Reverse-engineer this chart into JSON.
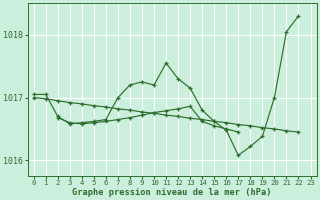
{
  "xlabel": "Graphe pression niveau de la mer (hPa)",
  "bg_color": "#cceedd",
  "grid_color": "#ffffff",
  "line_color": "#2d6e2d",
  "ylim": [
    1015.75,
    1018.5
  ],
  "xlim": [
    -0.5,
    23.5
  ],
  "yticks": [
    1016,
    1017,
    1018
  ],
  "xticks": [
    0,
    1,
    2,
    3,
    4,
    5,
    6,
    7,
    8,
    9,
    10,
    11,
    12,
    13,
    14,
    15,
    16,
    17,
    18,
    19,
    20,
    21,
    22,
    23
  ],
  "series1_x": [
    0,
    1,
    2,
    3,
    4,
    5,
    6,
    7,
    8,
    9,
    10,
    11,
    12,
    13,
    14,
    15,
    16,
    17,
    18,
    19,
    20,
    21,
    22
  ],
  "series1_y": [
    1017.05,
    1017.05,
    1016.7,
    1016.58,
    1016.6,
    1016.62,
    1016.65,
    1017.0,
    1017.2,
    1017.25,
    1017.2,
    1017.55,
    1017.3,
    1017.15,
    1016.8,
    1016.62,
    1016.48,
    1016.08,
    1016.22,
    1016.38,
    1017.0,
    1018.05,
    1018.3
  ],
  "series2_x": [
    0,
    1,
    2,
    3,
    4,
    5,
    6,
    7,
    8,
    9,
    10,
    11,
    12,
    13,
    14,
    15,
    16,
    17,
    18,
    19,
    20,
    21,
    22
  ],
  "series2_y": [
    1017.0,
    1016.98,
    1016.95,
    1016.92,
    1016.9,
    1016.87,
    1016.85,
    1016.82,
    1016.8,
    1016.77,
    1016.75,
    1016.72,
    1016.7,
    1016.67,
    1016.65,
    1016.62,
    1016.6,
    1016.57,
    1016.55,
    1016.52,
    1016.5,
    1016.47,
    1016.45
  ],
  "series3_x": [
    2,
    3,
    4,
    5,
    6,
    7,
    8,
    9,
    10,
    11,
    12,
    13,
    14,
    15,
    16,
    17
  ],
  "series3_y": [
    1016.68,
    1016.6,
    1016.58,
    1016.6,
    1016.62,
    1016.65,
    1016.68,
    1016.72,
    1016.76,
    1016.79,
    1016.82,
    1016.86,
    1016.62,
    1016.55,
    1016.5,
    1016.45
  ]
}
